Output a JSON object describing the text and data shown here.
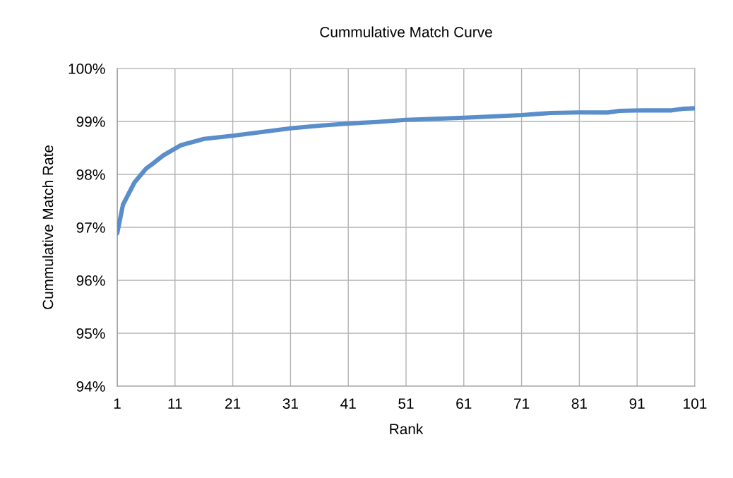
{
  "chart_data": {
    "type": "line",
    "title": "Cummulative Match Curve",
    "xlabel": "Rank",
    "ylabel": "Cummulative Match Rate",
    "series": [
      {
        "color": "#5a8ecb",
        "x": [
          1,
          2,
          4,
          6,
          7,
          9,
          12,
          16,
          21,
          26,
          31,
          36,
          41,
          46,
          51,
          61,
          71,
          76,
          81,
          86,
          88,
          92,
          97,
          99,
          101
        ],
        "values": [
          96.89,
          97.43,
          97.85,
          98.11,
          98.19,
          98.36,
          98.55,
          98.67,
          98.73,
          98.8,
          98.87,
          98.92,
          98.96,
          98.99,
          99.03,
          99.07,
          99.12,
          99.16,
          99.17,
          99.17,
          99.2,
          99.21,
          99.21,
          99.24,
          99.25
        ]
      }
    ],
    "xlim": [
      1,
      101
    ],
    "xticks": [
      1,
      11,
      21,
      31,
      41,
      51,
      61,
      71,
      81,
      91,
      101
    ],
    "ylim": [
      94,
      100
    ],
    "yticks": [
      {
        "value": 94,
        "label": "94%"
      },
      {
        "value": 95,
        "label": "95%"
      },
      {
        "value": 96,
        "label": "96%"
      },
      {
        "value": 97,
        "label": "97%"
      },
      {
        "value": 98,
        "label": "98%"
      },
      {
        "value": 99,
        "label": "99%"
      },
      {
        "value": 100,
        "label": "100%"
      }
    ],
    "grid": true,
    "marker": "none",
    "line_style": "solid"
  }
}
